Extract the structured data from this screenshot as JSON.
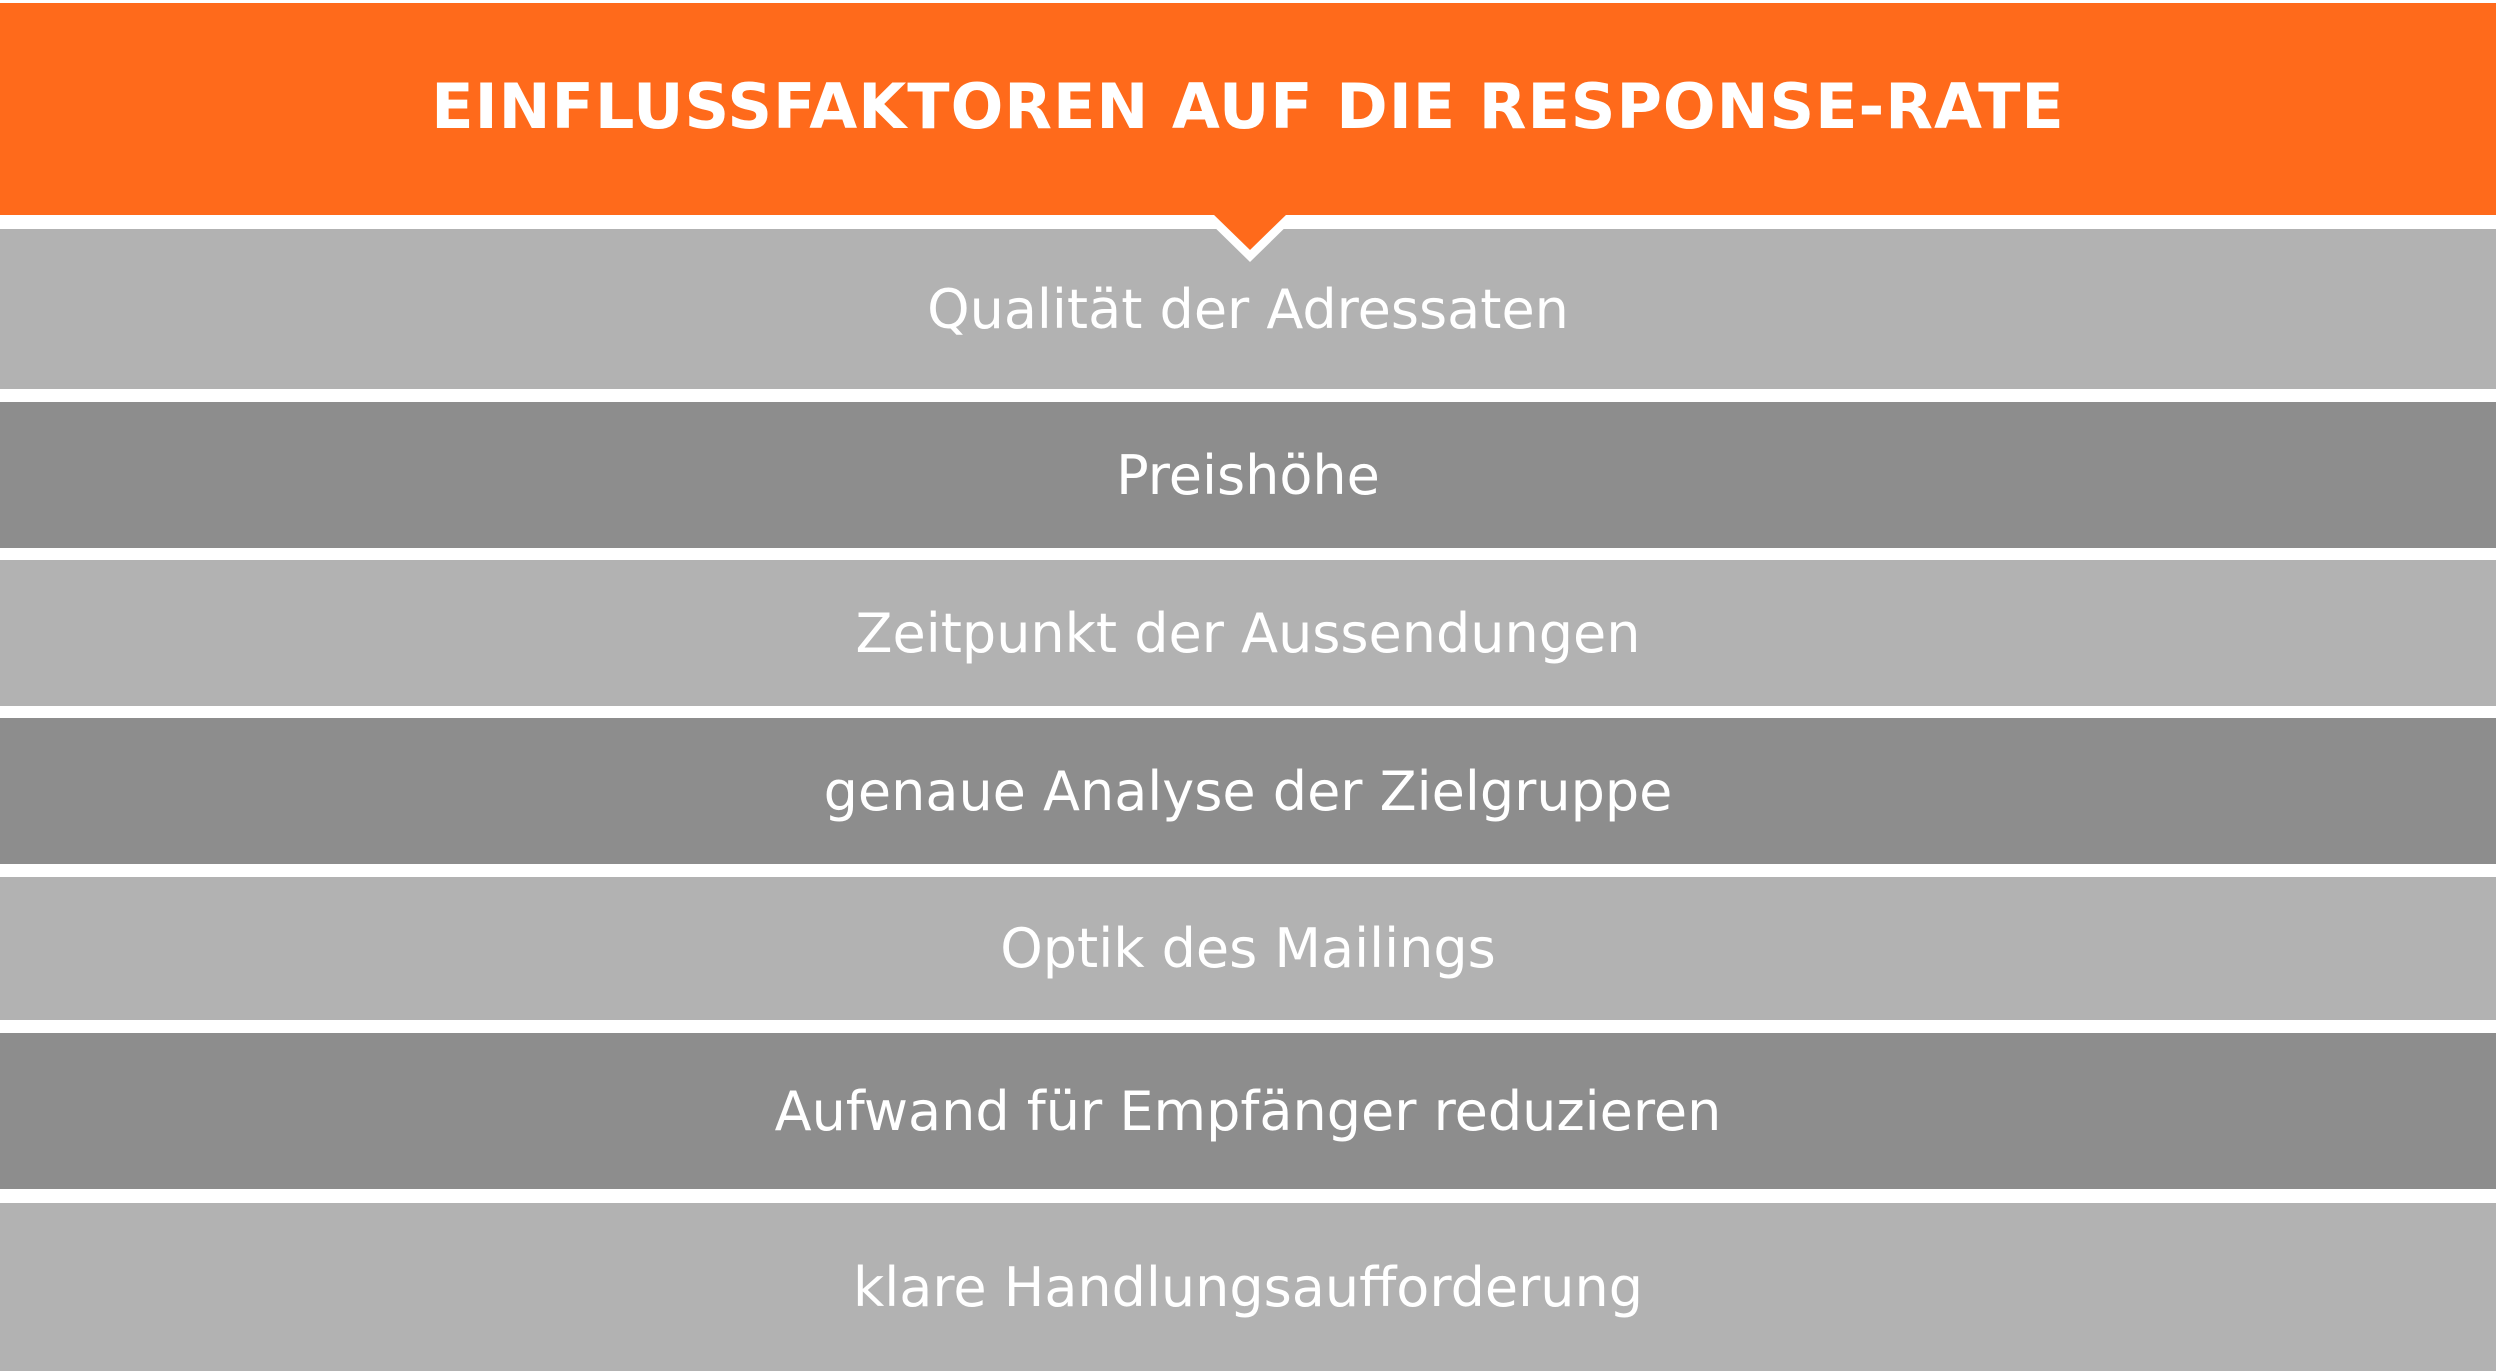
{
  "header": {
    "title": "EINFLUSSFAKTOREN AUF DIE RESPONSE-RATE"
  },
  "factors": [
    "Qualität der Adressaten",
    "Preishöhe",
    "Zeitpunkt der Aussendungen",
    "genaue Analyse der Zielgruppe",
    "Optik des Mailings",
    "Aufwand für Empfänger reduzieren",
    "klare Handlungsaufforderung"
  ],
  "colors": {
    "accent": "#ff6a1b",
    "light_bar": "#b2b2b2",
    "dark_bar": "#8d8d8d",
    "text": "#ffffff"
  }
}
